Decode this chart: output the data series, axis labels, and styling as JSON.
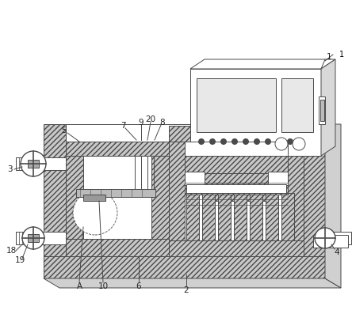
{
  "bg_color": "#ffffff",
  "lc": "#4a4a4a",
  "lw": 0.7,
  "fig_width": 4.44,
  "fig_height": 3.97
}
